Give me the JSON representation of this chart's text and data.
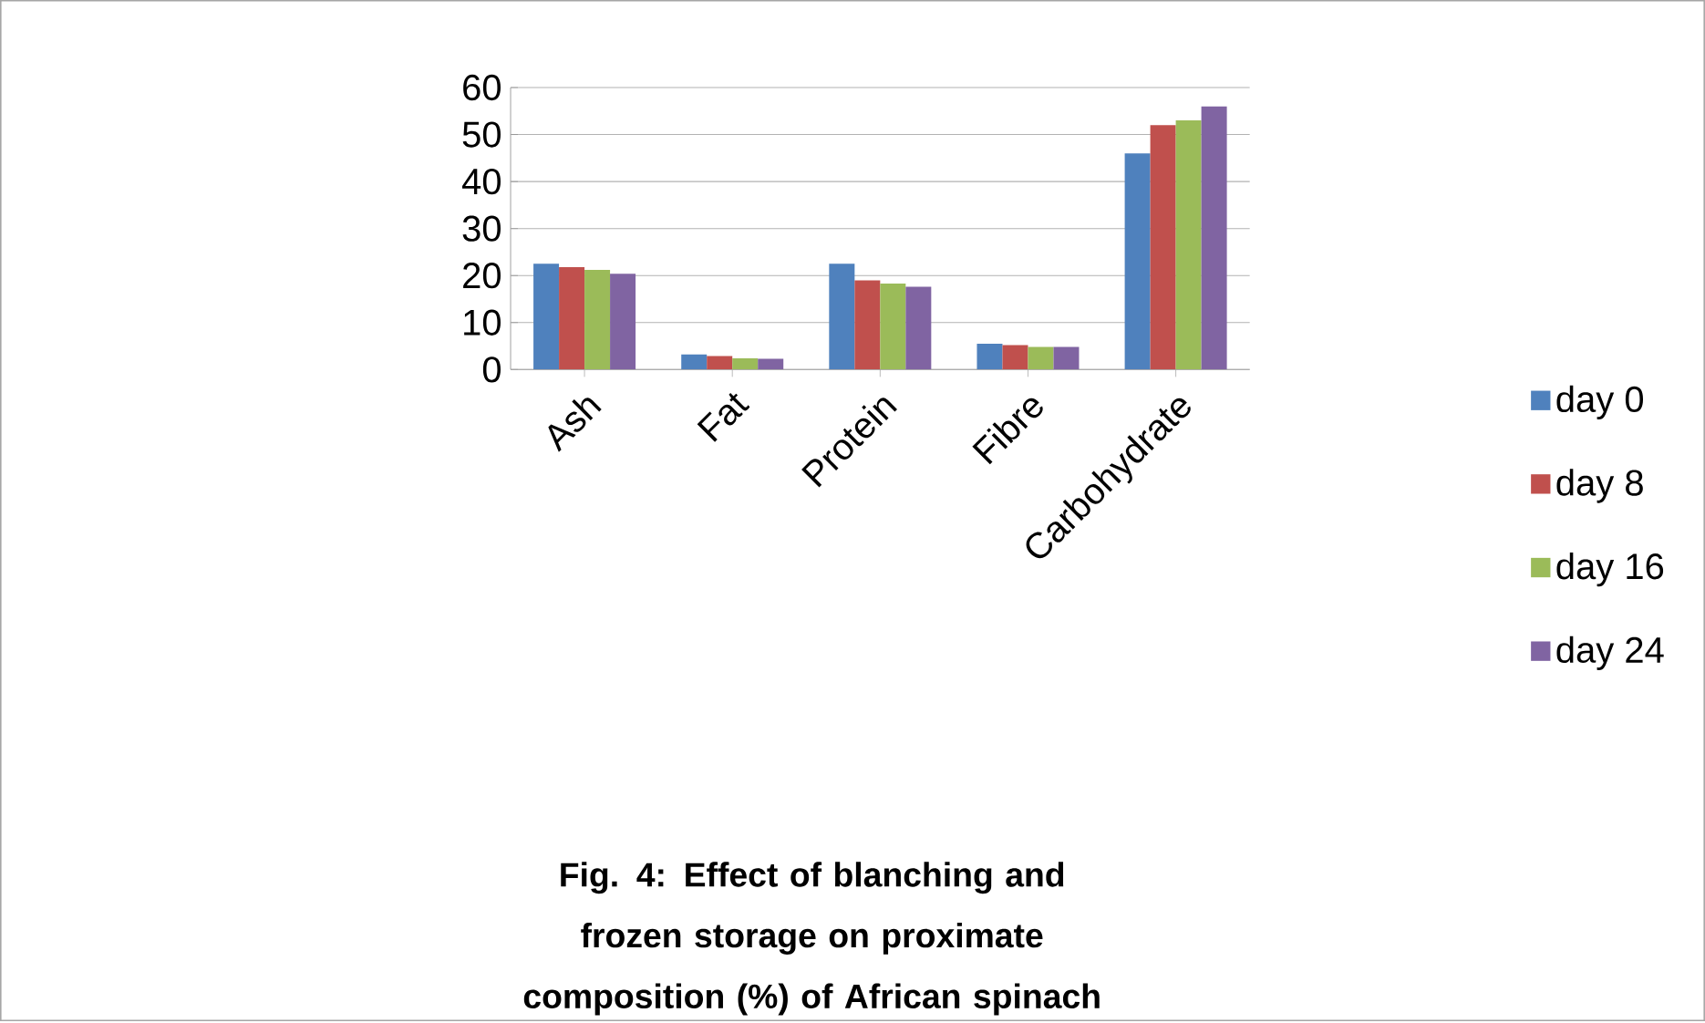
{
  "chart_data": {
    "type": "bar",
    "title": "Fig. 4: Effect of blanching and frozen storage on proximate composition (%) of  African spinach",
    "categories": [
      "Ash",
      "Fat",
      "Protein",
      "Fibre",
      "Carbohydrate"
    ],
    "series": [
      {
        "name": "day 0",
        "color": "#4f81bd",
        "values": [
          22.5,
          3.2,
          22.5,
          5.5,
          46
        ]
      },
      {
        "name": "day 8",
        "color": "#c0504d",
        "values": [
          21.8,
          2.9,
          19,
          5.2,
          52
        ]
      },
      {
        "name": "day 16",
        "color": "#9bbb59",
        "values": [
          21.2,
          2.4,
          18.3,
          4.8,
          53
        ]
      },
      {
        "name": "day 24",
        "color": "#8064a2",
        "values": [
          20.4,
          2.3,
          17.6,
          4.8,
          56
        ]
      }
    ],
    "ylim": [
      0,
      60
    ],
    "yticks": [
      0,
      10,
      20,
      30,
      40,
      50,
      60
    ],
    "grid": "y",
    "legend": "right"
  }
}
